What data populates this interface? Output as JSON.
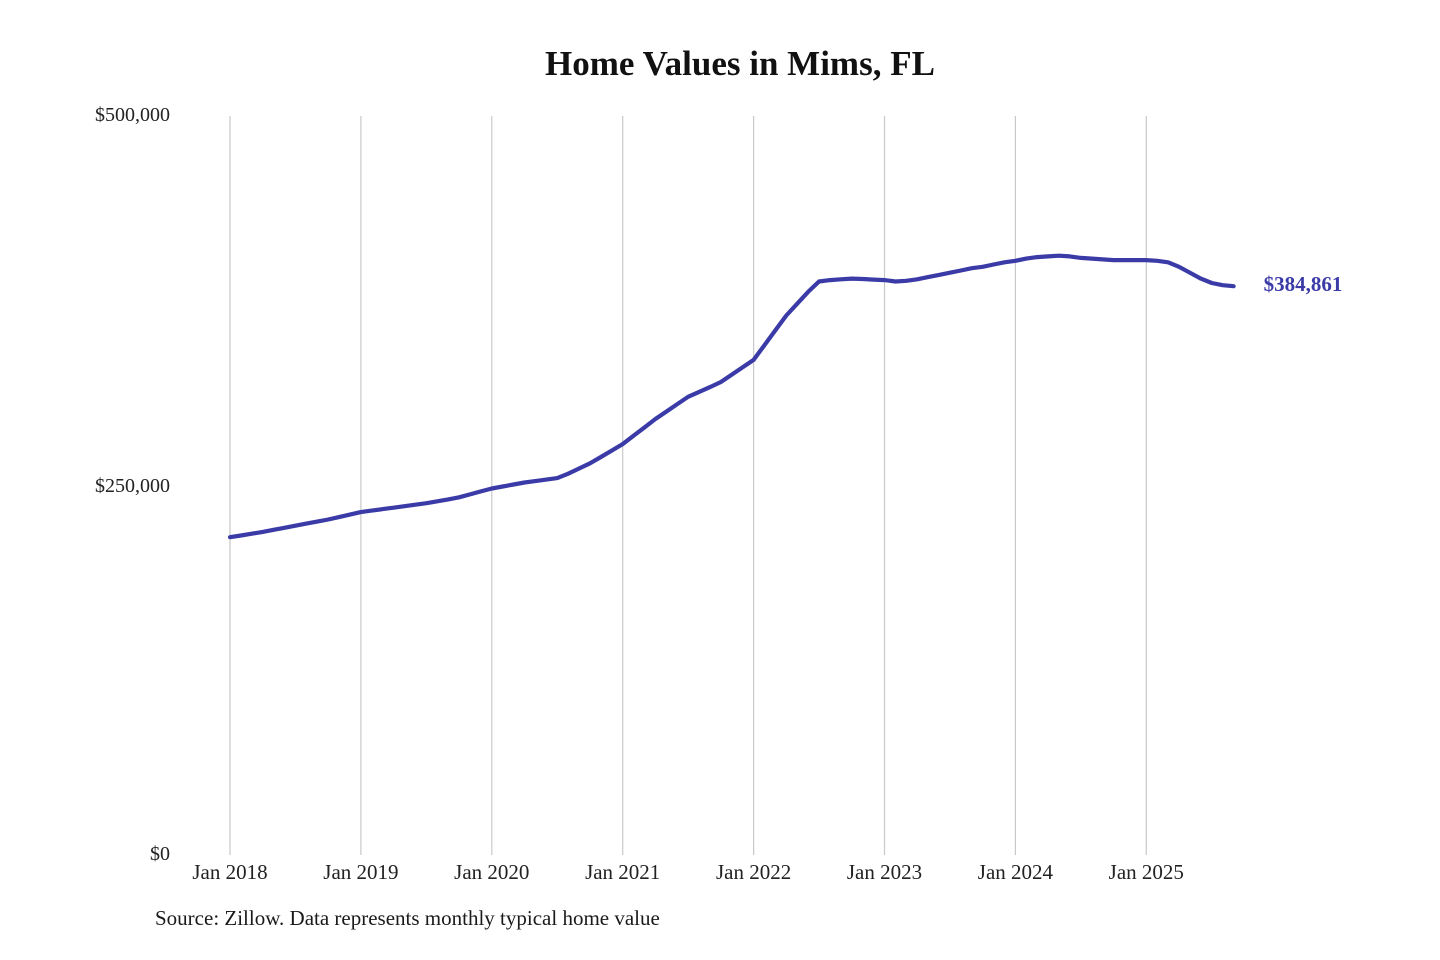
{
  "chart_data": {
    "type": "line",
    "title": "Home Values in Mims, FL",
    "ylabel": "",
    "xlabel": "",
    "ylim": [
      0,
      500000
    ],
    "grid": "vertical-yearly",
    "legend_position": "none",
    "y_tick_values": [
      0,
      250000,
      500000
    ],
    "y_tick_labels": [
      "$0",
      "$250,000",
      "$500,000"
    ],
    "x_tick_labels": [
      "Jan 2018",
      "Jan 2019",
      "Jan 2020",
      "Jan 2021",
      "Jan 2022",
      "Jan 2023",
      "Jan 2024",
      "Jan 2025"
    ],
    "latest_value": 384861,
    "latest_value_label": "$384,861",
    "line_color": "#3b3ba8",
    "gridline_color": "#c9c9c9",
    "source_note": "Source: Zillow. Data represents monthly typical home value",
    "series": [
      {
        "name": "Typical home value",
        "color": "#3b3ba8",
        "months": [
          "2018-01",
          "2018-02",
          "2018-03",
          "2018-04",
          "2018-05",
          "2018-06",
          "2018-07",
          "2018-08",
          "2018-09",
          "2018-10",
          "2018-11",
          "2018-12",
          "2019-01",
          "2019-02",
          "2019-03",
          "2019-04",
          "2019-05",
          "2019-06",
          "2019-07",
          "2019-08",
          "2019-09",
          "2019-10",
          "2019-11",
          "2019-12",
          "2020-01",
          "2020-02",
          "2020-03",
          "2020-04",
          "2020-05",
          "2020-06",
          "2020-07",
          "2020-08",
          "2020-09",
          "2020-10",
          "2020-11",
          "2020-12",
          "2021-01",
          "2021-02",
          "2021-03",
          "2021-04",
          "2021-05",
          "2021-06",
          "2021-07",
          "2021-08",
          "2021-09",
          "2021-10",
          "2021-11",
          "2021-12",
          "2022-01",
          "2022-02",
          "2022-03",
          "2022-04",
          "2022-05",
          "2022-06",
          "2022-07",
          "2022-08",
          "2022-09",
          "2022-10",
          "2022-11",
          "2022-12",
          "2023-01",
          "2023-02",
          "2023-03",
          "2023-04",
          "2023-05",
          "2023-06",
          "2023-07",
          "2023-08",
          "2023-09",
          "2023-10",
          "2023-11",
          "2023-12",
          "2024-01",
          "2024-02",
          "2024-03",
          "2024-04",
          "2024-05",
          "2024-06",
          "2024-07",
          "2024-08",
          "2024-09",
          "2024-10",
          "2024-11",
          "2024-12",
          "2025-01",
          "2025-02",
          "2025-03",
          "2025-04",
          "2025-05",
          "2025-06",
          "2025-07",
          "2025-08",
          "2025-09"
        ],
        "values": [
          215000,
          216200,
          217400,
          218600,
          220000,
          221400,
          222800,
          224200,
          225600,
          227000,
          228600,
          230300,
          232000,
          233000,
          234000,
          235000,
          236000,
          237000,
          238000,
          239300,
          240600,
          242000,
          244000,
          246000,
          248000,
          249300,
          250700,
          252000,
          253000,
          254000,
          255000,
          258000,
          261500,
          265000,
          269300,
          273600,
          278000,
          283700,
          289300,
          295000,
          300000,
          305000,
          310000,
          313300,
          316600,
          320000,
          325000,
          330000,
          335000,
          345000,
          355000,
          365000,
          373000,
          381000,
          388000,
          389000,
          389500,
          390000,
          389700,
          389300,
          389000,
          388000,
          388500,
          389500,
          391000,
          392500,
          394000,
          395500,
          397000,
          398000,
          399500,
          401000,
          402000,
          403500,
          404500,
          405000,
          405500,
          405000,
          404000,
          403500,
          403000,
          402500,
          402500,
          402500,
          402500,
          402000,
          401000,
          398000,
          394000,
          390000,
          387000,
          385500,
          384861
        ]
      }
    ]
  }
}
